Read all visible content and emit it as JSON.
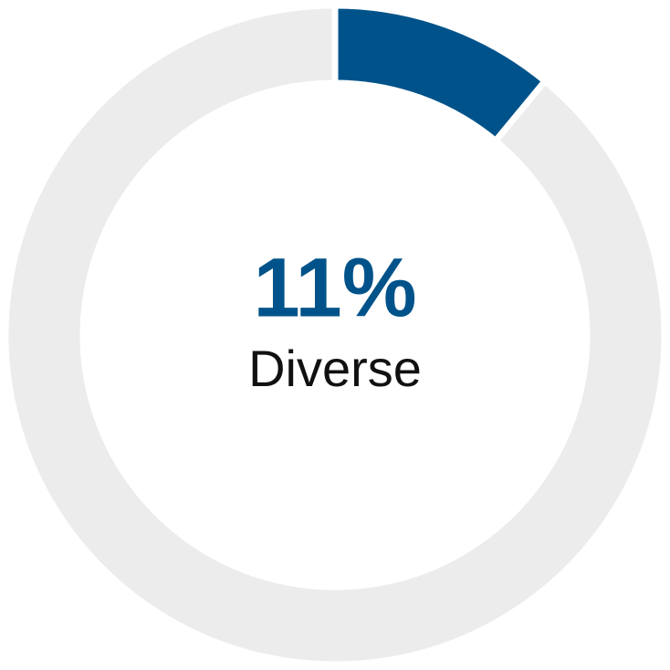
{
  "chart_data": {
    "type": "donut",
    "categories": [
      "Diverse",
      null
    ],
    "values": [
      11,
      89
    ],
    "value_labels": [
      "11%",
      null
    ],
    "colors": [
      "#00538a",
      "#ececec"
    ]
  }
}
